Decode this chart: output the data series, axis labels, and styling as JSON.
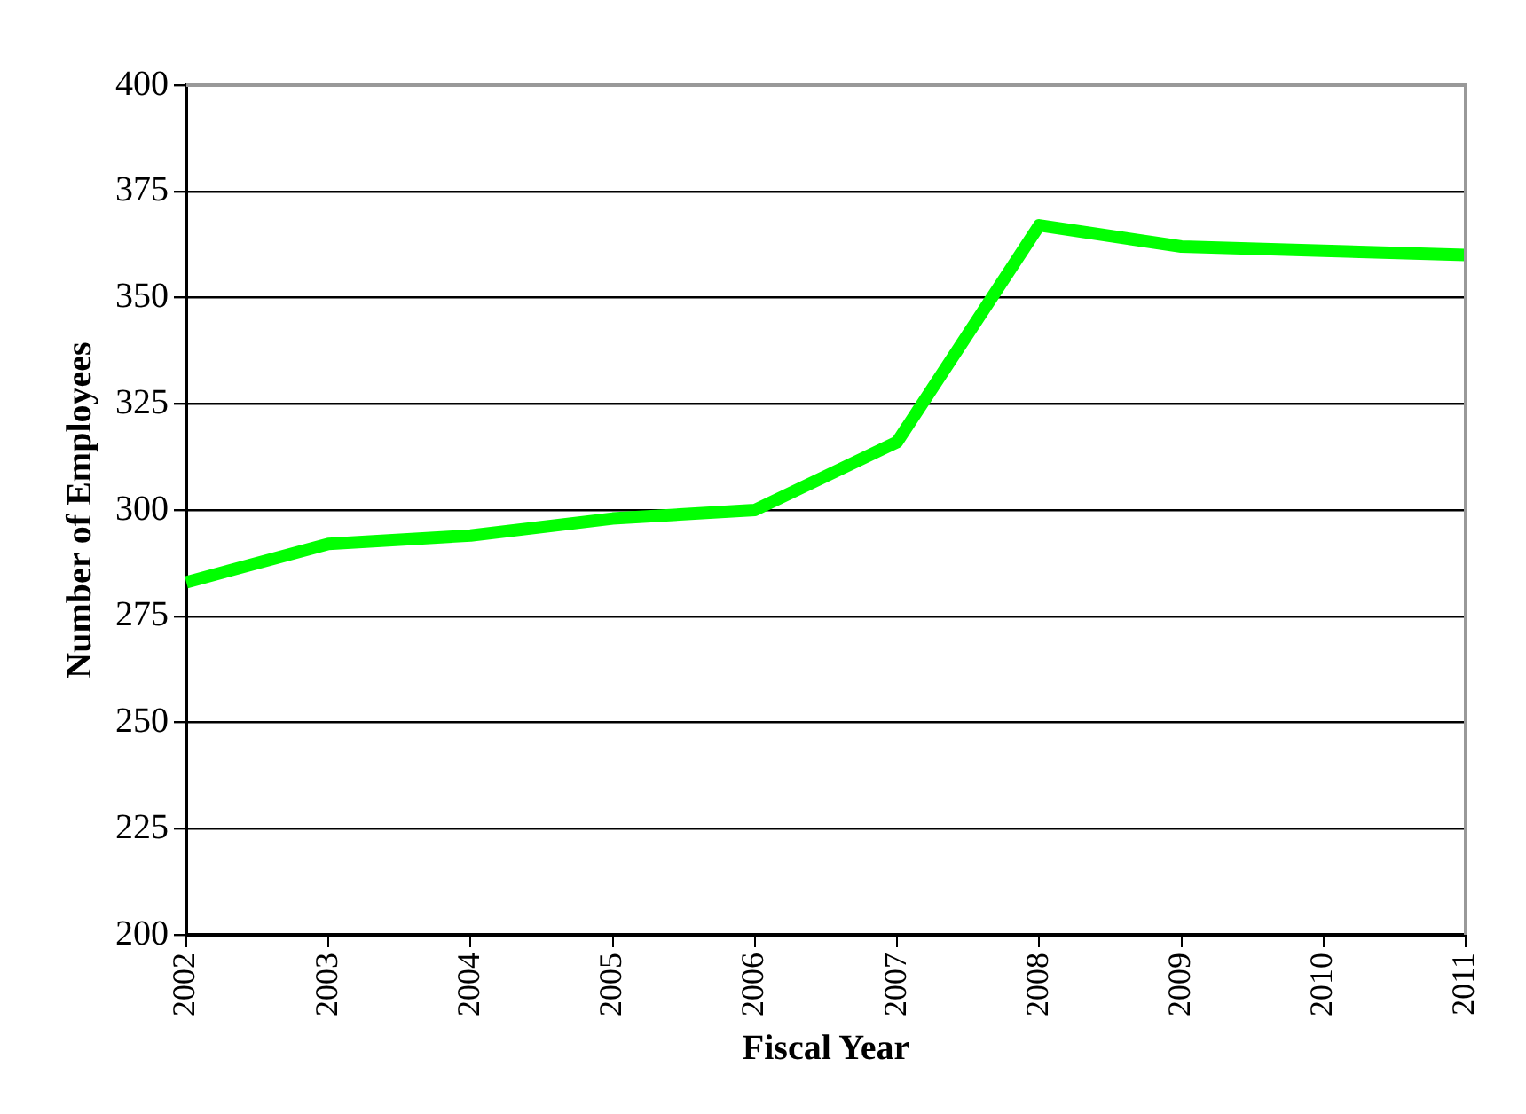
{
  "chart_data": {
    "type": "line",
    "xlabel": "Fiscal Year",
    "ylabel": "Number of Employees",
    "categories": [
      "2002",
      "2003",
      "2004",
      "2005",
      "2006",
      "2007",
      "2008",
      "2009",
      "2010",
      "2011"
    ],
    "series": [
      {
        "color": "#00ff00",
        "values": [
          283,
          292,
          294,
          298,
          300,
          316,
          367,
          362,
          361,
          360
        ]
      }
    ],
    "ylim": [
      200,
      400
    ],
    "yticks": [
      200,
      225,
      250,
      275,
      300,
      325,
      350,
      375,
      400
    ],
    "grid": "y",
    "legend": false,
    "marker": "none",
    "line_style": "solid"
  }
}
